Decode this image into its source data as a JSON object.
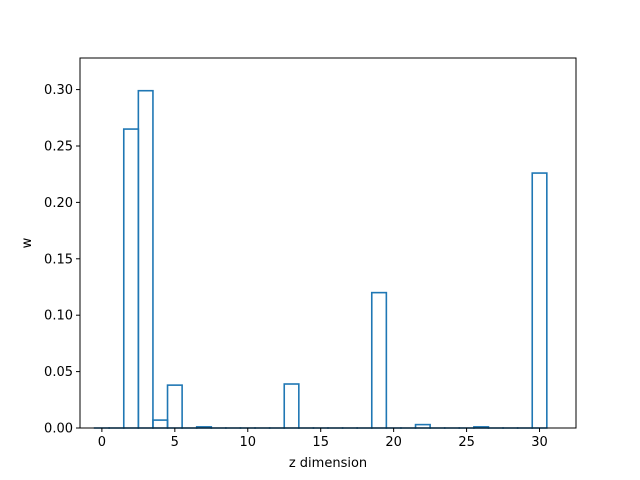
{
  "chart_data": {
    "type": "bar",
    "style": "step-outline",
    "color": "#1f77b4",
    "xlabel": "z dimension",
    "ylabel": "w",
    "title": "",
    "xlim": [
      -1.5,
      32.5
    ],
    "ylim": [
      0,
      0.328
    ],
    "xticks": [
      0,
      5,
      10,
      15,
      20,
      25,
      30
    ],
    "yticks": [
      "0.00",
      "0.05",
      "0.10",
      "0.15",
      "0.20",
      "0.25",
      "0.30"
    ],
    "ytick_values": [
      0,
      0.05,
      0.1,
      0.15,
      0.2,
      0.25,
      0.3
    ],
    "grid": false,
    "categories": [
      0,
      1,
      2,
      3,
      4,
      5,
      6,
      7,
      8,
      9,
      10,
      11,
      12,
      13,
      14,
      15,
      16,
      17,
      18,
      19,
      20,
      21,
      22,
      23,
      24,
      25,
      26,
      27,
      28,
      29,
      30
    ],
    "values": [
      0,
      0,
      0.265,
      0.299,
      0.007,
      0.038,
      0,
      0.001,
      0,
      0,
      0,
      0,
      0,
      0.039,
      0,
      0,
      0,
      0,
      0,
      0.12,
      0,
      0,
      0.003,
      0,
      0,
      0,
      0.001,
      0,
      0,
      0,
      0.226
    ]
  }
}
